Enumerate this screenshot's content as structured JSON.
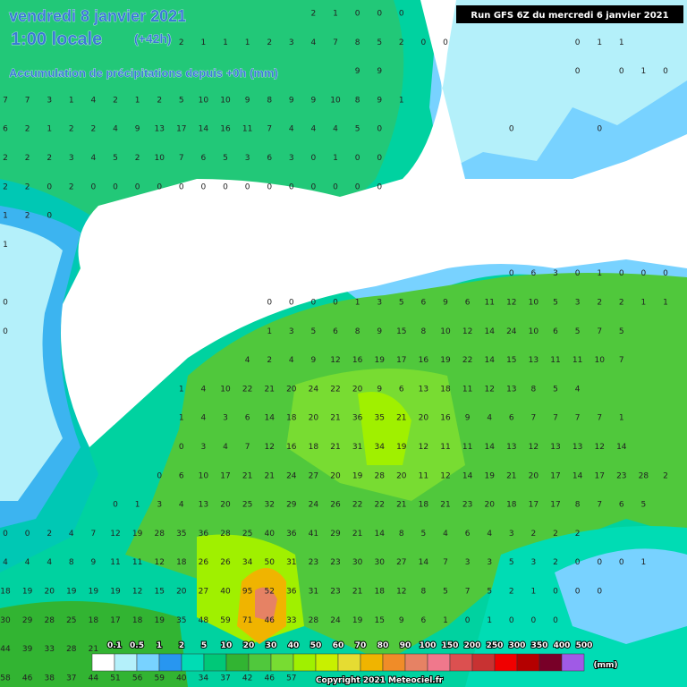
{
  "header": {
    "date": "vendredi 8 janvier 2021",
    "time": "1:00 locale",
    "lead": "(+42h)",
    "subtitle": "Accumulation de précipitations depuis +0h (mm)",
    "run": "Run GFS 6Z du mercredi 6 janvier 2021"
  },
  "legend": {
    "labels": [
      "0.1",
      "0.5",
      "1",
      "2",
      "5",
      "10",
      "20",
      "30",
      "40",
      "50",
      "60",
      "70",
      "80",
      "90",
      "100",
      "150",
      "200",
      "250",
      "300",
      "350",
      "400",
      "500"
    ],
    "colors": [
      "#ffffff",
      "#b4f0fa",
      "#78d2ff",
      "#2896f0",
      "#00dcb4",
      "#00c878",
      "#32b432",
      "#50c83c",
      "#78dc32",
      "#a0f000",
      "#c8f000",
      "#e6dc32",
      "#f0b400",
      "#f08c28",
      "#e68264",
      "#f0788c",
      "#dc5050",
      "#c83232",
      "#f00000",
      "#b40000",
      "#780028",
      "#a05ae6"
    ],
    "unit": "(mm)"
  },
  "grid": [
    [
      null,
      null,
      null,
      null,
      null,
      null,
      null,
      null,
      null,
      null,
      null,
      null,
      null,
      null,
      2,
      1,
      0,
      0,
      0
    ],
    [
      null,
      null,
      null,
      null,
      null,
      null,
      null,
      null,
      2,
      1,
      1,
      1,
      2,
      3,
      4,
      7,
      8,
      5,
      2,
      0,
      0,
      null,
      null,
      null,
      null,
      null,
      0,
      1,
      1
    ],
    [
      null,
      null,
      null,
      null,
      null,
      null,
      null,
      null,
      null,
      null,
      null,
      null,
      null,
      null,
      null,
      null,
      9,
      9,
      null,
      null,
      null,
      null,
      null,
      null,
      null,
      null,
      0,
      null,
      0,
      1,
      0
    ],
    [
      7,
      7,
      3,
      1,
      4,
      2,
      1,
      2,
      5,
      10,
      10,
      9,
      8,
      9,
      9,
      10,
      8,
      9,
      1
    ],
    [
      6,
      2,
      1,
      2,
      2,
      4,
      9,
      13,
      17,
      14,
      16,
      11,
      7,
      4,
      4,
      4,
      5,
      0,
      null,
      null,
      null,
      null,
      null,
      0,
      null,
      null,
      null,
      0
    ],
    [
      2,
      2,
      2,
      3,
      4,
      5,
      2,
      10,
      7,
      6,
      5,
      3,
      6,
      3,
      0,
      1,
      0,
      0
    ],
    [
      2,
      2,
      0,
      2,
      0,
      0,
      0,
      0,
      0,
      0,
      0,
      0,
      0,
      0,
      0,
      0,
      0,
      0
    ],
    [
      1,
      2,
      0
    ],
    [
      1
    ],
    [
      null,
      null,
      null,
      null,
      null,
      null,
      null,
      null,
      null,
      null,
      null,
      null,
      null,
      null,
      null,
      null,
      null,
      null,
      null,
      null,
      null,
      null,
      null,
      0,
      6,
      3,
      0,
      1,
      0,
      0,
      0
    ],
    [
      0,
      null,
      null,
      null,
      null,
      null,
      null,
      null,
      null,
      null,
      null,
      null,
      0,
      0,
      0,
      0,
      1,
      3,
      5,
      6,
      9,
      6,
      11,
      12,
      10,
      5,
      3,
      2,
      2,
      1,
      1
    ],
    [
      0,
      null,
      null,
      null,
      null,
      null,
      null,
      null,
      null,
      null,
      null,
      null,
      1,
      3,
      5,
      6,
      8,
      9,
      15,
      8,
      10,
      12,
      14,
      24,
      10,
      6,
      5,
      7,
      5
    ],
    [
      null,
      null,
      null,
      null,
      null,
      null,
      null,
      null,
      null,
      null,
      null,
      4,
      2,
      4,
      9,
      12,
      16,
      19,
      17,
      16,
      19,
      22,
      14,
      15,
      13,
      11,
      11,
      10,
      7
    ],
    [
      null,
      null,
      null,
      null,
      null,
      null,
      null,
      null,
      1,
      4,
      10,
      22,
      21,
      20,
      24,
      22,
      20,
      9,
      6,
      13,
      18,
      11,
      12,
      13,
      8,
      5,
      4
    ],
    [
      null,
      null,
      null,
      null,
      null,
      null,
      null,
      null,
      1,
      4,
      3,
      6,
      14,
      18,
      20,
      21,
      36,
      35,
      21,
      20,
      16,
      9,
      4,
      6,
      7,
      7,
      7,
      7,
      1
    ],
    [
      null,
      null,
      null,
      null,
      null,
      null,
      null,
      null,
      0,
      3,
      4,
      7,
      12,
      16,
      18,
      21,
      31,
      34,
      19,
      12,
      11,
      11,
      14,
      13,
      12,
      13,
      13,
      12,
      14
    ],
    [
      null,
      null,
      null,
      null,
      null,
      null,
      null,
      0,
      6,
      10,
      17,
      21,
      21,
      24,
      27,
      20,
      19,
      28,
      20,
      11,
      12,
      14,
      19,
      21,
      20,
      17,
      14,
      17,
      23,
      28,
      2
    ],
    [
      null,
      null,
      null,
      null,
      null,
      0,
      1,
      3,
      4,
      13,
      20,
      25,
      32,
      29,
      24,
      26,
      22,
      22,
      21,
      18,
      21,
      23,
      20,
      18,
      17,
      17,
      8,
      7,
      6,
      5
    ],
    [
      0,
      0,
      2,
      4,
      7,
      12,
      19,
      28,
      35,
      36,
      28,
      25,
      40,
      36,
      41,
      29,
      21,
      14,
      8,
      5,
      4,
      6,
      4,
      3,
      2,
      2,
      2
    ],
    [
      4,
      4,
      4,
      8,
      9,
      11,
      11,
      12,
      18,
      26,
      26,
      34,
      50,
      31,
      23,
      23,
      30,
      30,
      27,
      14,
      7,
      3,
      3,
      5,
      3,
      2,
      0,
      0,
      0,
      1
    ],
    [
      18,
      19,
      20,
      19,
      19,
      19,
      12,
      15,
      20,
      27,
      40,
      95,
      52,
      36,
      31,
      23,
      21,
      18,
      12,
      8,
      5,
      7,
      5,
      2,
      1,
      0,
      0,
      0
    ],
    [
      30,
      29,
      28,
      25,
      18,
      17,
      18,
      19,
      35,
      48,
      59,
      71,
      46,
      33,
      28,
      24,
      19,
      15,
      9,
      6,
      1,
      0,
      1,
      0,
      0,
      0
    ],
    [
      44,
      39,
      33,
      28,
      21
    ],
    [
      58,
      46,
      38,
      37,
      44,
      51,
      56,
      59,
      40,
      34,
      37,
      42,
      46,
      57
    ]
  ],
  "copyright": "Copyright 2021 Meteociel.fr"
}
